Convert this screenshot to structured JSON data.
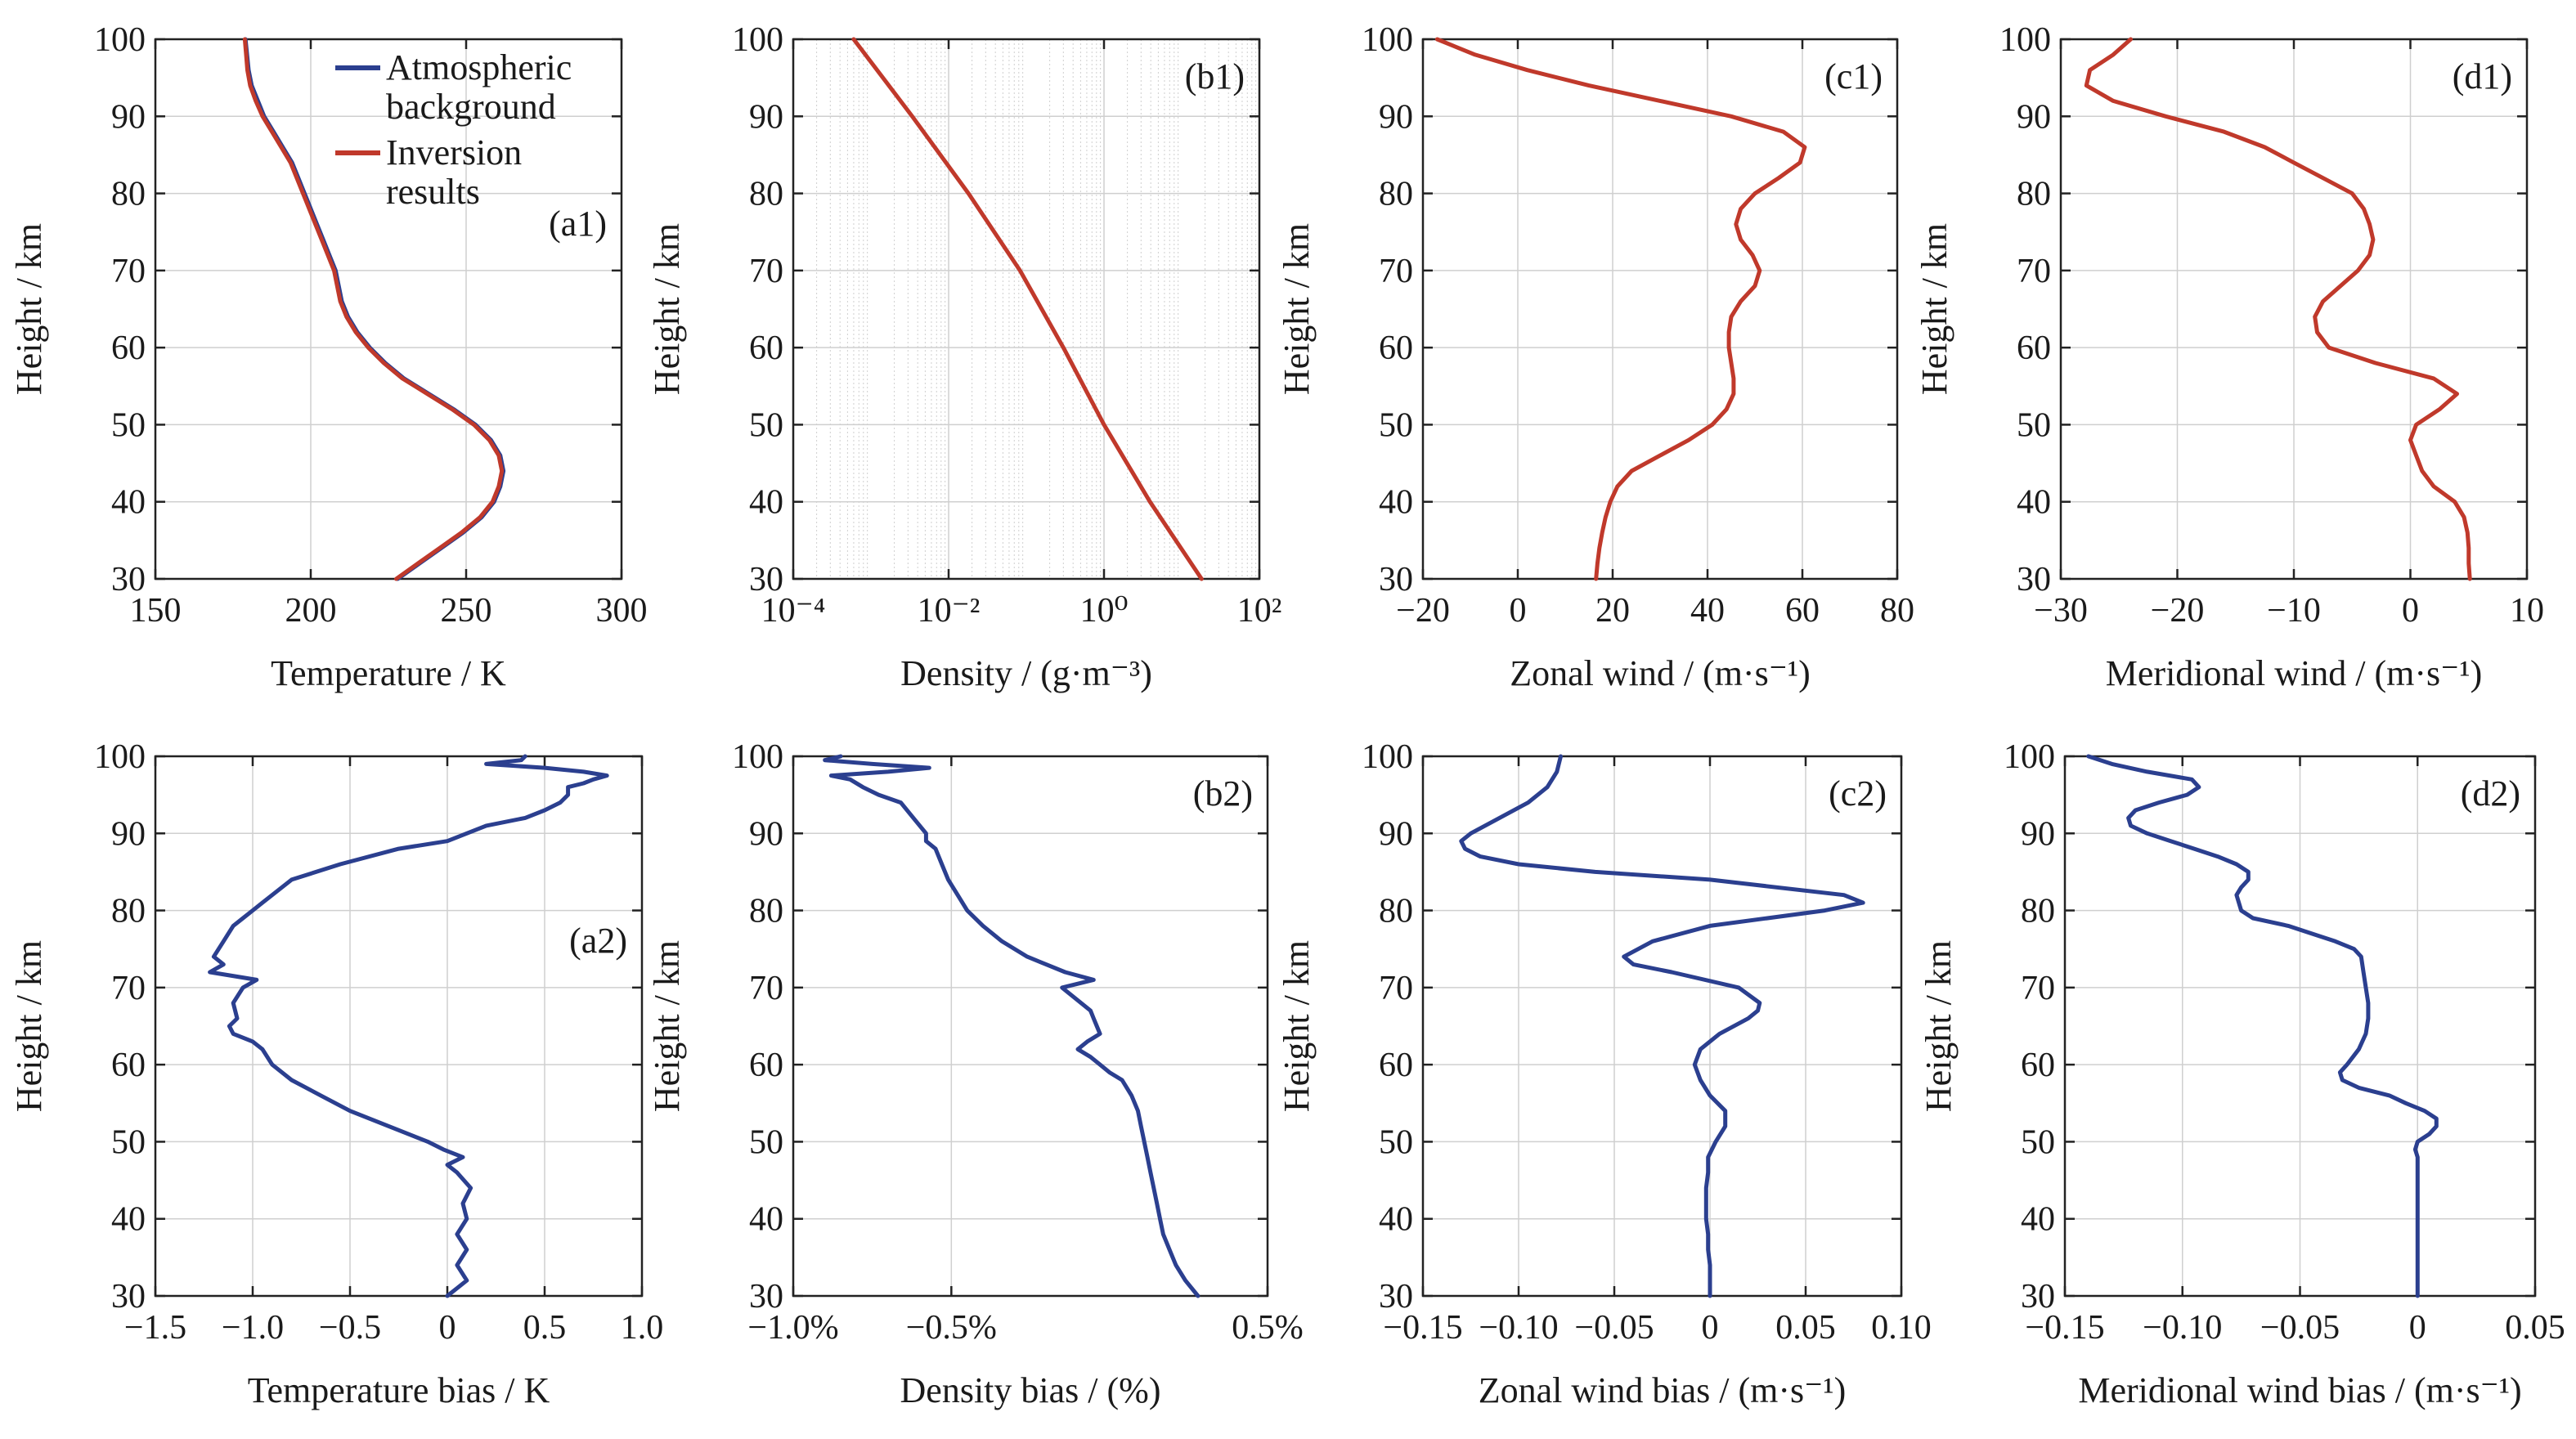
{
  "colors": {
    "background_series": "#2b3f8f",
    "inversion_series": "#c0392b",
    "axis": "#222222",
    "grid": "#cfcfcf"
  },
  "legend": {
    "entries": [
      {
        "line1": "Atmospheric",
        "line2": "background",
        "color": "#2b3f8f"
      },
      {
        "line1": "Inversion",
        "line2": "results",
        "color": "#c0392b"
      }
    ]
  },
  "chart_data": [
    {
      "id": "a1",
      "panel_label": "(a1)",
      "type": "line",
      "grid": true,
      "xlabel": "Temperature / K",
      "ylabel": "Height / km",
      "xlim": [
        150,
        300
      ],
      "ylim": [
        30,
        100
      ],
      "xticks": [
        150,
        200,
        250,
        300
      ],
      "xtick_labels": [
        "150",
        "200",
        "250",
        "300"
      ],
      "yticks": [
        30,
        40,
        50,
        60,
        70,
        80,
        90,
        100
      ],
      "ytick_labels": [
        "30",
        "40",
        "50",
        "60",
        "70",
        "80",
        "90",
        "100"
      ],
      "y": [
        30,
        32,
        34,
        36,
        38,
        40,
        42,
        44,
        46,
        48,
        50,
        52,
        54,
        56,
        58,
        60,
        62,
        64,
        66,
        68,
        70,
        72,
        74,
        76,
        78,
        80,
        82,
        84,
        86,
        88,
        90,
        92,
        94,
        96,
        98,
        100
      ],
      "series": [
        {
          "name": "Atmospheric background",
          "color": "#2b3f8f",
          "x": [
            228,
            235,
            242,
            249,
            255,
            259,
            261,
            262,
            261,
            258,
            253,
            246,
            238,
            230,
            224,
            219,
            215,
            212,
            210,
            209,
            208,
            206,
            204,
            202,
            200,
            198,
            196,
            194,
            191,
            188,
            185,
            183,
            181,
            180,
            179.5,
            179
          ]
        },
        {
          "name": "Inversion results",
          "color": "#c0392b",
          "x": [
            227.5,
            234.5,
            241.5,
            248.5,
            254.5,
            258.5,
            260.5,
            261.5,
            260.5,
            257.5,
            252.5,
            245.5,
            237.5,
            229.5,
            223.5,
            218.5,
            214.5,
            211.5,
            209.5,
            208.5,
            207.5,
            205.5,
            203.5,
            201.5,
            199.5,
            197.5,
            195.5,
            193.5,
            190.5,
            187.5,
            184.5,
            182.3,
            180.5,
            179.6,
            179.2,
            178.8
          ]
        }
      ]
    },
    {
      "id": "b1",
      "panel_label": "(b1)",
      "type": "line",
      "grid": true,
      "xscale": "log",
      "xlabel": "Density / (g·m⁻³)",
      "ylabel": "Height / km",
      "xlim": [
        0.0001,
        100
      ],
      "ylim": [
        30,
        100
      ],
      "xticks": [
        0.0001,
        0.01,
        1,
        100
      ],
      "xtick_labels": [
        "10⁻⁴",
        "10⁻²",
        "10⁰",
        "10²"
      ],
      "yticks": [
        30,
        40,
        50,
        60,
        70,
        80,
        90,
        100
      ],
      "ytick_labels": [
        "30",
        "40",
        "50",
        "60",
        "70",
        "80",
        "90",
        "100"
      ],
      "y": [
        30,
        40,
        50,
        60,
        70,
        80,
        90,
        100
      ],
      "series": [
        {
          "name": "Inversion results",
          "color": "#c0392b",
          "x": [
            18,
            3.9,
            1.0,
            0.3,
            0.083,
            0.018,
            0.0034,
            0.0006
          ]
        }
      ]
    },
    {
      "id": "c1",
      "panel_label": "(c1)",
      "type": "line",
      "grid": true,
      "xlabel": "Zonal wind / (m·s⁻¹)",
      "ylabel": "Height / km",
      "xlim": [
        -20,
        80
      ],
      "ylim": [
        30,
        100
      ],
      "xticks": [
        -20,
        0,
        20,
        40,
        60,
        80
      ],
      "xtick_labels": [
        "−20",
        "0",
        "20",
        "40",
        "60",
        "80"
      ],
      "yticks": [
        30,
        40,
        50,
        60,
        70,
        80,
        90,
        100
      ],
      "ytick_labels": [
        "30",
        "40",
        "50",
        "60",
        "70",
        "80",
        "90",
        "100"
      ],
      "y": [
        30,
        32,
        34,
        36,
        38,
        40,
        42,
        44,
        46,
        48,
        50,
        52,
        54,
        56,
        58,
        60,
        62,
        64,
        66,
        68,
        70,
        72,
        74,
        76,
        78,
        80,
        82,
        84,
        86,
        88,
        90,
        92,
        94,
        96,
        98,
        100
      ],
      "series": [
        {
          "name": "Inversion results",
          "color": "#c0392b",
          "x": [
            16.5,
            16.8,
            17.2,
            17.8,
            18.5,
            19.5,
            21,
            24,
            30,
            36,
            41,
            44,
            45.5,
            45.5,
            45,
            44.5,
            44.5,
            45,
            47,
            50,
            51,
            49.5,
            47,
            46,
            47,
            50,
            55,
            59.5,
            60.5,
            56,
            45,
            30,
            15,
            2,
            -9,
            -17
          ]
        }
      ]
    },
    {
      "id": "d1",
      "panel_label": "(d1)",
      "type": "line",
      "grid": true,
      "xlabel": "Meridional wind / (m·s⁻¹)",
      "ylabel": "Height / km",
      "xlim": [
        -30,
        10
      ],
      "ylim": [
        30,
        100
      ],
      "xticks": [
        -30,
        -20,
        -10,
        0,
        10
      ],
      "xtick_labels": [
        "−30",
        "−20",
        "−10",
        "0",
        "10"
      ],
      "yticks": [
        30,
        40,
        50,
        60,
        70,
        80,
        90,
        100
      ],
      "ytick_labels": [
        "30",
        "40",
        "50",
        "60",
        "70",
        "80",
        "90",
        "100"
      ],
      "y": [
        30,
        32,
        34,
        36,
        38,
        40,
        42,
        44,
        46,
        48,
        50,
        52,
        54,
        56,
        58,
        60,
        62,
        64,
        66,
        68,
        70,
        72,
        74,
        76,
        78,
        80,
        82,
        84,
        86,
        88,
        90,
        92,
        94,
        96,
        98,
        100
      ],
      "series": [
        {
          "name": "Inversion results",
          "color": "#c0392b",
          "x": [
            5.1,
            5.0,
            5.0,
            4.9,
            4.6,
            3.8,
            2.0,
            1.0,
            0.5,
            0.0,
            0.5,
            2.5,
            4.0,
            2.0,
            -3.0,
            -7.0,
            -8.0,
            -8.2,
            -7.5,
            -6.0,
            -4.5,
            -3.5,
            -3.2,
            -3.5,
            -4.0,
            -5.0,
            -7.5,
            -10.0,
            -12.5,
            -16.0,
            -21.0,
            -25.5,
            -27.8,
            -27.5,
            -25.5,
            -24.0
          ]
        }
      ]
    },
    {
      "id": "a2",
      "panel_label": "(a2)",
      "type": "line",
      "grid": true,
      "xlabel": "Temperature bias / K",
      "ylabel": "Height / km",
      "xlim": [
        -1.5,
        1.0
      ],
      "ylim": [
        30,
        100
      ],
      "xticks": [
        -1.5,
        -1.0,
        -0.5,
        0,
        0.5,
        1.0
      ],
      "xtick_labels": [
        "−1.5",
        "−1.0",
        "−0.5",
        "0",
        "0.5",
        "1.0"
      ],
      "yticks": [
        30,
        40,
        50,
        60,
        70,
        80,
        90,
        100
      ],
      "ytick_labels": [
        "30",
        "40",
        "50",
        "60",
        "70",
        "80",
        "90",
        "100"
      ],
      "y": [
        30,
        31,
        32,
        34,
        36,
        38,
        40,
        42,
        44,
        46,
        47,
        48,
        49,
        50,
        52,
        54,
        56,
        58,
        60,
        62,
        63,
        64,
        65,
        66,
        68,
        70,
        71,
        72,
        73,
        74,
        76,
        78,
        79,
        80,
        81,
        82,
        84,
        86,
        88,
        89,
        90,
        91,
        92,
        93,
        94,
        95,
        96,
        96.5,
        97,
        97.5,
        98,
        98.5,
        99,
        99.5,
        100
      ],
      "series": [
        {
          "name": "Temperature bias",
          "color": "#2b3f8f",
          "x": [
            0.0,
            0.05,
            0.1,
            0.05,
            0.1,
            0.05,
            0.1,
            0.08,
            0.12,
            0.05,
            0.0,
            0.08,
            -0.02,
            -0.1,
            -0.3,
            -0.5,
            -0.65,
            -0.8,
            -0.9,
            -0.95,
            -1.0,
            -1.1,
            -1.12,
            -1.08,
            -1.1,
            -1.05,
            -0.98,
            -1.22,
            -1.15,
            -1.2,
            -1.15,
            -1.1,
            -1.05,
            -1.0,
            -0.95,
            -0.9,
            -0.8,
            -0.55,
            -0.25,
            0.0,
            0.1,
            0.2,
            0.4,
            0.5,
            0.58,
            0.62,
            0.62,
            0.7,
            0.75,
            0.82,
            0.7,
            0.5,
            0.2,
            0.38,
            0.4
          ]
        }
      ]
    },
    {
      "id": "b2",
      "panel_label": "(b2)",
      "type": "line",
      "grid": true,
      "xlabel": "Density bias / (%)",
      "ylabel": "Height / km",
      "xlim": [
        -1.0,
        0.5
      ],
      "ylim": [
        30,
        100
      ],
      "xticks": [
        -1.0,
        -0.5,
        0.5
      ],
      "xtick_labels": [
        "−1.0%",
        "−0.5%",
        "0.5%"
      ],
      "yticks": [
        30,
        40,
        50,
        60,
        70,
        80,
        90,
        100
      ],
      "ytick_labels": [
        "30",
        "40",
        "50",
        "60",
        "70",
        "80",
        "90",
        "100"
      ],
      "y": [
        30,
        32,
        34,
        36,
        38,
        40,
        42,
        44,
        46,
        48,
        50,
        52,
        54,
        56,
        58,
        59,
        60,
        61,
        62,
        63,
        64,
        65,
        66,
        67,
        68,
        69,
        70,
        71,
        72,
        73,
        74,
        76,
        78,
        80,
        82,
        84,
        86,
        88,
        89,
        90,
        91,
        92,
        94,
        95,
        96,
        97,
        97.5,
        98,
        98.5,
        99,
        99.5,
        100
      ],
      "series": [
        {
          "name": "Density bias",
          "color": "#2b3f8f",
          "x": [
            0.28,
            0.24,
            0.21,
            0.19,
            0.17,
            0.16,
            0.15,
            0.14,
            0.13,
            0.12,
            0.11,
            0.1,
            0.09,
            0.07,
            0.04,
            0.0,
            -0.03,
            -0.06,
            -0.1,
            -0.07,
            -0.03,
            -0.04,
            -0.05,
            -0.06,
            -0.09,
            -0.12,
            -0.15,
            -0.05,
            -0.14,
            -0.2,
            -0.26,
            -0.34,
            -0.4,
            -0.45,
            -0.48,
            -0.51,
            -0.53,
            -0.55,
            -0.58,
            -0.58,
            -0.6,
            -0.62,
            -0.66,
            -0.73,
            -0.78,
            -0.82,
            -0.88,
            -0.7,
            -0.57,
            -0.75,
            -0.9,
            -0.85
          ]
        }
      ]
    },
    {
      "id": "c2",
      "panel_label": "(c2)",
      "type": "line",
      "grid": true,
      "xlabel": "Zonal wind bias / (m·s⁻¹)",
      "ylabel": "Height / km",
      "xlim": [
        -0.15,
        0.1
      ],
      "ylim": [
        30,
        100
      ],
      "xticks": [
        -0.15,
        -0.1,
        -0.05,
        0,
        0.05,
        0.1
      ],
      "xtick_labels": [
        "−0.15",
        "−0.10",
        "−0.05",
        "0",
        "0.05",
        "0.10"
      ],
      "yticks": [
        30,
        40,
        50,
        60,
        70,
        80,
        90,
        100
      ],
      "ytick_labels": [
        "30",
        "40",
        "50",
        "60",
        "70",
        "80",
        "90",
        "100"
      ],
      "y": [
        30,
        32,
        34,
        36,
        38,
        40,
        42,
        44,
        46,
        48,
        50,
        52,
        54,
        56,
        58,
        60,
        62,
        64,
        66,
        67,
        68,
        70,
        72,
        73,
        74,
        76,
        78,
        80,
        81,
        82,
        84,
        85,
        86,
        87,
        88,
        89,
        90,
        92,
        94,
        96,
        98,
        100
      ],
      "series": [
        {
          "name": "Zonal wind bias",
          "color": "#2b3f8f",
          "x": [
            0.0,
            0.0,
            0.0,
            -0.001,
            -0.001,
            -0.002,
            -0.002,
            -0.002,
            -0.001,
            -0.001,
            0.003,
            0.008,
            0.008,
            0.0,
            -0.005,
            -0.008,
            -0.005,
            0.005,
            0.02,
            0.025,
            0.026,
            0.015,
            -0.02,
            -0.04,
            -0.045,
            -0.03,
            0.0,
            0.06,
            0.08,
            0.07,
            0.0,
            -0.06,
            -0.1,
            -0.12,
            -0.128,
            -0.13,
            -0.125,
            -0.11,
            -0.095,
            -0.085,
            -0.08,
            -0.078
          ]
        }
      ]
    },
    {
      "id": "d2",
      "panel_label": "(d2)",
      "type": "line",
      "grid": true,
      "xlabel": "Meridional wind bias / (m·s⁻¹)",
      "ylabel": "Height / km",
      "xlim": [
        -0.15,
        0.05
      ],
      "ylim": [
        30,
        100
      ],
      "xticks": [
        -0.15,
        -0.1,
        -0.05,
        0,
        0.05
      ],
      "xtick_labels": [
        "−0.15",
        "−0.10",
        "−0.05",
        "0",
        "0.05"
      ],
      "yticks": [
        30,
        40,
        50,
        60,
        70,
        80,
        90,
        100
      ],
      "ytick_labels": [
        "30",
        "40",
        "50",
        "60",
        "70",
        "80",
        "90",
        "100"
      ],
      "y": [
        30,
        35,
        40,
        45,
        47,
        48,
        49,
        50,
        51,
        52,
        53,
        54,
        55,
        56,
        57,
        58,
        59,
        60,
        62,
        64,
        66,
        68,
        70,
        72,
        74,
        75,
        76,
        78,
        79,
        80,
        82,
        83,
        84,
        85,
        86,
        87,
        88,
        89,
        90,
        91,
        92,
        93,
        94,
        95,
        96,
        97,
        98,
        99,
        100
      ],
      "series": [
        {
          "name": "Meridional wind bias",
          "color": "#2b3f8f",
          "x": [
            0.0,
            0.0,
            0.0,
            0.0,
            0.0,
            0.0,
            -0.001,
            0.0,
            0.005,
            0.008,
            0.008,
            0.003,
            -0.005,
            -0.012,
            -0.025,
            -0.032,
            -0.033,
            -0.03,
            -0.025,
            -0.022,
            -0.021,
            -0.021,
            -0.022,
            -0.023,
            -0.024,
            -0.027,
            -0.035,
            -0.055,
            -0.07,
            -0.075,
            -0.077,
            -0.075,
            -0.072,
            -0.072,
            -0.077,
            -0.085,
            -0.095,
            -0.105,
            -0.115,
            -0.122,
            -0.123,
            -0.12,
            -0.11,
            -0.098,
            -0.093,
            -0.096,
            -0.115,
            -0.13,
            -0.14
          ]
        }
      ]
    }
  ]
}
